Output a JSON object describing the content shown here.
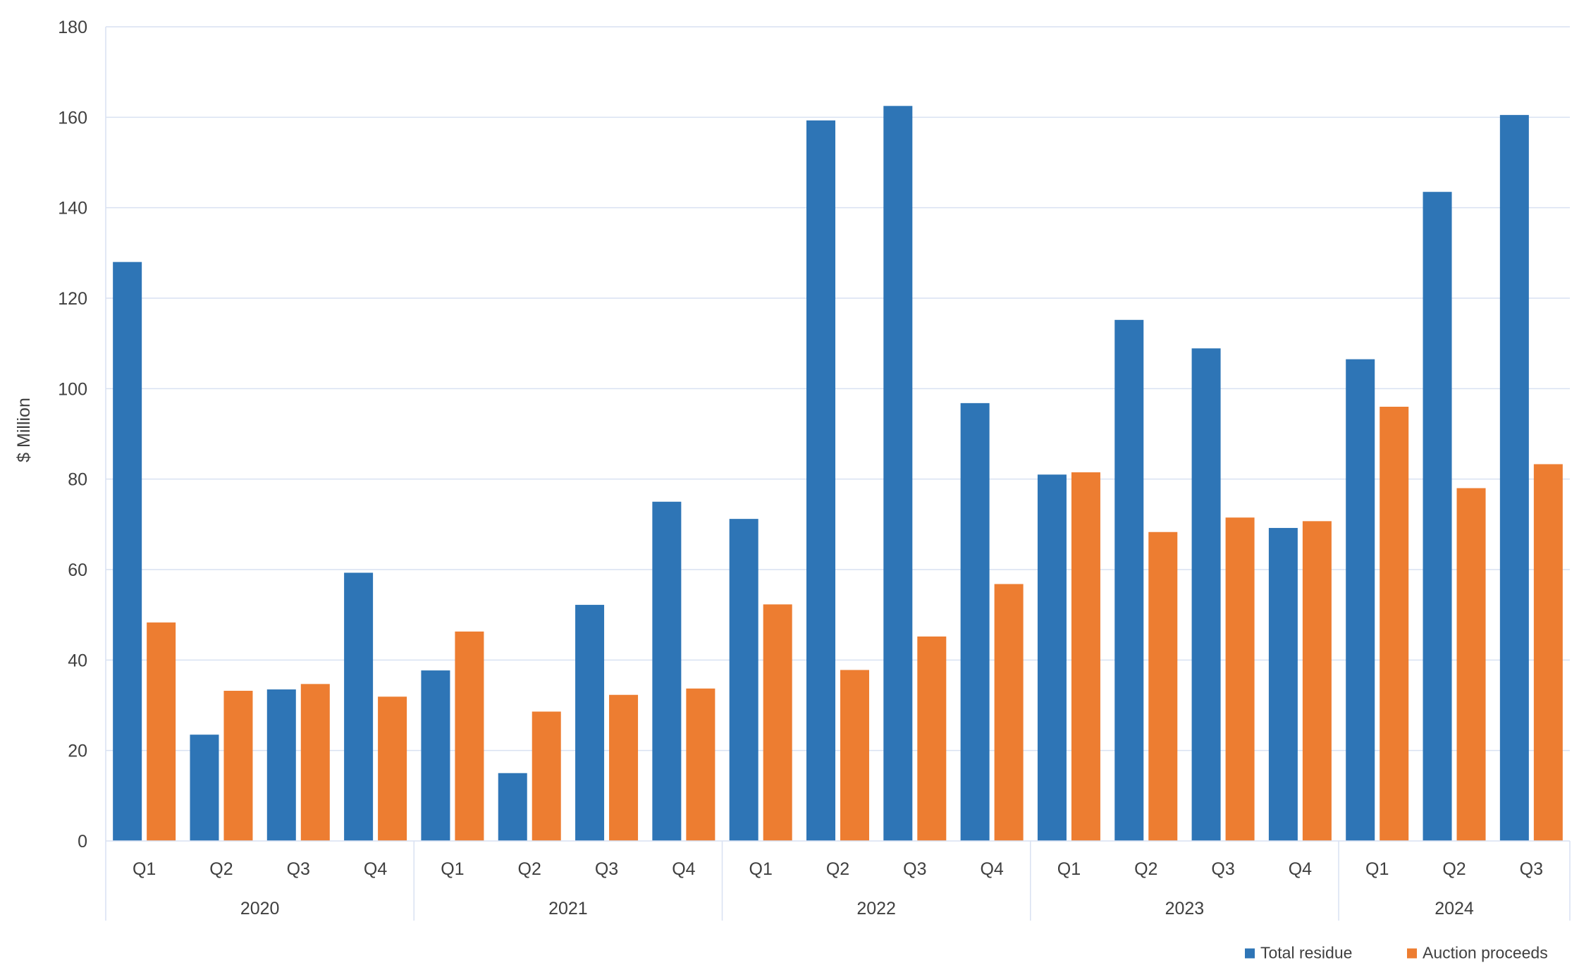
{
  "chart_data": {
    "type": "bar",
    "title": "",
    "ylabel": "$ Million",
    "xlabel": "",
    "ylim": [
      0,
      180
    ],
    "yticks": [
      0,
      20,
      40,
      60,
      80,
      100,
      120,
      140,
      160,
      180
    ],
    "grid": true,
    "legend_position": "bottom-right",
    "year_groups": [
      {
        "label": "2020",
        "quarters": [
          "Q1",
          "Q2",
          "Q3",
          "Q4"
        ]
      },
      {
        "label": "2021",
        "quarters": [
          "Q1",
          "Q2",
          "Q3",
          "Q4"
        ]
      },
      {
        "label": "2022",
        "quarters": [
          "Q1",
          "Q2",
          "Q3",
          "Q4"
        ]
      },
      {
        "label": "2023",
        "quarters": [
          "Q1",
          "Q2",
          "Q3",
          "Q4"
        ]
      },
      {
        "label": "2024",
        "quarters": [
          "Q1",
          "Q2",
          "Q3"
        ]
      }
    ],
    "series": [
      {
        "name": "Total residue",
        "color": "#2E75B6",
        "values": [
          128,
          23.5,
          33.5,
          59.3,
          37.7,
          15,
          52.2,
          75,
          71.2,
          159.3,
          162.5,
          96.8,
          81,
          115.2,
          108.9,
          69.2,
          106.5,
          143.5,
          160.5
        ]
      },
      {
        "name": "Auction proceeds",
        "color": "#ED7D31",
        "values": [
          48.3,
          33.2,
          34.7,
          31.9,
          46.3,
          28.6,
          32.3,
          33.7,
          52.3,
          37.8,
          45.2,
          56.8,
          81.5,
          68.3,
          71.5,
          70.7,
          96,
          78,
          83.3
        ]
      }
    ]
  },
  "colors": {
    "axis": "#D9E1F2",
    "grid": "#D9E1F2",
    "text": "#404040"
  }
}
